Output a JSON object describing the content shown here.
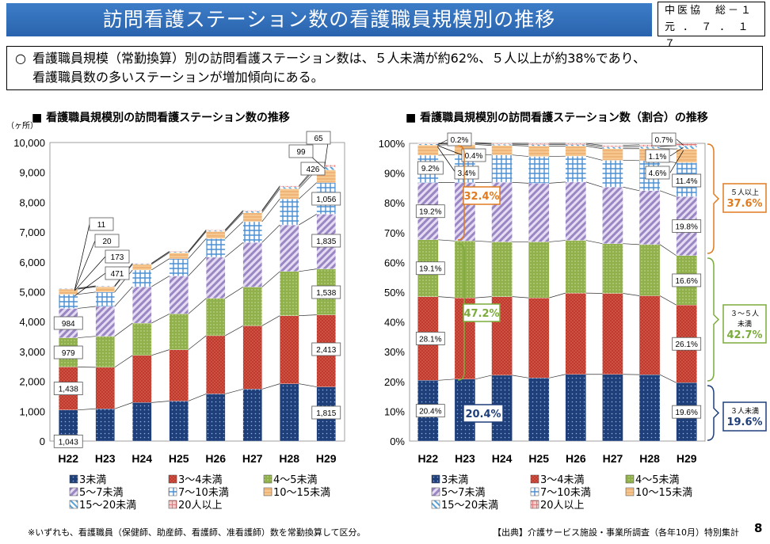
{
  "page": {
    "title": "訪問看護ステーション数の看護職員規模別の推移",
    "doc_id_line1": "中医協　総－１",
    "doc_id_line2": "元 ． ７ ． １ ７",
    "summary_mark": "○",
    "summary_line1": "看護職員規模（常勤換算）別の訪問看護ステーション数は、５人未満が約62%、５人以上が約38%であり、",
    "summary_line2": "看護職員数の多いステーションが増加傾向にある。",
    "footnote": "※いずれも、看護職員（保健師、助産師、看護師、准看護師）数を常勤換算して区分。",
    "source": "【出典】介護サービス施設・事業所調査（各年10月）特別集計",
    "page_number": "8"
  },
  "colors": {
    "title_bg": "#2f6db5",
    "s1": "#1f3f7a",
    "s2": "#c0392b",
    "s3": "#8fb04a",
    "s4": "#9b86c4",
    "s5": "#4a8fd4",
    "s6": "#e8a060",
    "s7": "#5aa3d9",
    "s8": "#e07a7a",
    "orange": "#e07b20",
    "green": "#7bab3a",
    "navy": "#1f3f7a"
  },
  "chart_data": [
    {
      "type": "bar",
      "stacked": true,
      "title": "■ 看護職員規模別の訪問看護ステーション数の推移",
      "unit": "（ヶ所）",
      "categories": [
        "H22",
        "H23",
        "H24",
        "H25",
        "H26",
        "H27",
        "H28",
        "H29"
      ],
      "ylim": [
        0,
        10000
      ],
      "yticks": [
        "0",
        "1,000",
        "2,000",
        "3,000",
        "4,000",
        "5,000",
        "6,000",
        "7,000",
        "8,000",
        "9,000",
        "10,000"
      ],
      "series": [
        {
          "name": "3未満",
          "values": [
            1043,
            1080,
            1290,
            1340,
            1580,
            1740,
            1920,
            1815
          ]
        },
        {
          "name": "3～4未満",
          "values": [
            1438,
            1390,
            1580,
            1720,
            1950,
            2120,
            2280,
            2413
          ]
        },
        {
          "name": "4～5未満",
          "values": [
            979,
            1040,
            1080,
            1200,
            1250,
            1300,
            1480,
            1538
          ]
        },
        {
          "name": "5～7未満",
          "values": [
            984,
            1000,
            1220,
            1270,
            1380,
            1490,
            1560,
            1835
          ]
        },
        {
          "name": "7～10未満",
          "values": [
            471,
            480,
            560,
            580,
            620,
            700,
            870,
            1056
          ]
        },
        {
          "name": "10～15未満",
          "values": [
            173,
            180,
            190,
            200,
            240,
            300,
            340,
            426
          ]
        },
        {
          "name": "15～20未満",
          "values": [
            20,
            20,
            25,
            30,
            35,
            50,
            60,
            99
          ]
        },
        {
          "name": "20人以上",
          "values": [
            11,
            10,
            12,
            15,
            20,
            25,
            40,
            65
          ]
        }
      ],
      "labels_H22": [
        "1,043",
        "1,438",
        "979",
        "984",
        "471",
        "173",
        "20",
        "11"
      ],
      "labels_H29": [
        "1,815",
        "2,413",
        "1,538",
        "1,835",
        "1,056",
        "426",
        "99",
        "65"
      ]
    },
    {
      "type": "bar",
      "stacked": true,
      "percent": true,
      "title": "■ 看護職員規模別の訪問看護ステーション数（割合）の推移",
      "categories": [
        "H22",
        "H23",
        "H24",
        "H25",
        "H26",
        "H27",
        "H28",
        "H29"
      ],
      "ylim": [
        0,
        100
      ],
      "yticks": [
        "0%",
        "10%",
        "20%",
        "30%",
        "40%",
        "50%",
        "60%",
        "70%",
        "80%",
        "90%",
        "100%"
      ],
      "series": [
        {
          "name": "3未満",
          "values": [
            20.4,
            20.8,
            22.1,
            21.2,
            22.4,
            22.4,
            22.3,
            19.6
          ]
        },
        {
          "name": "3～4未満",
          "values": [
            28.1,
            27.3,
            26.4,
            26.9,
            27.3,
            27.2,
            26.5,
            26.1
          ]
        },
        {
          "name": "4～5未満",
          "values": [
            19.1,
            19.1,
            18.4,
            18.8,
            17.7,
            16.7,
            17.2,
            16.6
          ]
        },
        {
          "name": "5～7未満",
          "values": [
            19.2,
            19.6,
            20.0,
            19.7,
            19.6,
            19.0,
            18.1,
            19.8
          ]
        },
        {
          "name": "7～10未満",
          "values": [
            9.2,
            9.4,
            9.2,
            9.0,
            8.7,
            9.0,
            10.1,
            11.4
          ]
        },
        {
          "name": "10～15未満",
          "values": [
            3.4,
            3.4,
            3.2,
            3.5,
            3.4,
            3.9,
            4.0,
            4.6
          ]
        },
        {
          "name": "15～20未満",
          "values": [
            0.4,
            0.4,
            0.4,
            0.5,
            0.5,
            0.6,
            0.7,
            1.1
          ]
        },
        {
          "name": "20人以上",
          "values": [
            0.2,
            0.2,
            0.3,
            0.4,
            0.4,
            0.5,
            0.6,
            0.7
          ]
        }
      ],
      "labels_H22": [
        "20.4%",
        "28.1%",
        "19.1%",
        "19.2%",
        "9.2%",
        "3.4%",
        "0.4%",
        "0.2%"
      ],
      "labels_H29": [
        "19.6%",
        "26.1%",
        "16.6%",
        "19.8%",
        "11.4%",
        "4.6%",
        "1.1%",
        "0.7%"
      ],
      "group_labels": {
        "left_5plus": "32.4%",
        "left_3to5": "47.2%",
        "left_under3": "20.4%",
        "right_5plus_name": "５人以上",
        "right_5plus": "37.6%",
        "right_3to5_name1": "３～５人",
        "right_3to5_name2": "未満",
        "right_3to5": "42.7%",
        "right_under3_name": "３人未満",
        "right_under3": "19.6%"
      }
    }
  ]
}
